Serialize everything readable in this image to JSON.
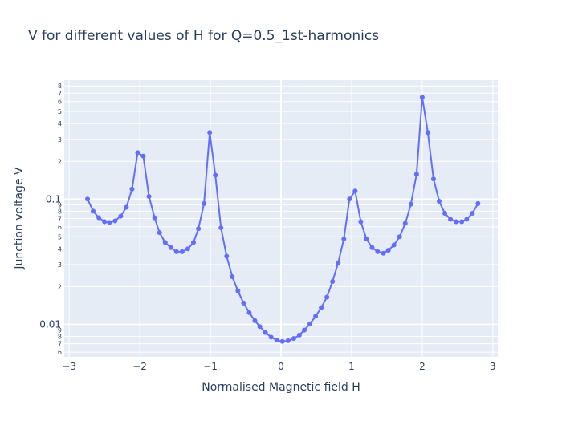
{
  "chart_data": {
    "type": "line",
    "title": "V for different values of H for Q=0.5_1st-harmonics",
    "xlabel": "Normalised Magnetic field H",
    "ylabel": "Junction voltage V",
    "xlim": [
      -3.07,
      3.07
    ],
    "ylim": [
      0.0055,
      0.89
    ],
    "y_scale": "log",
    "grid": true,
    "legend": "none",
    "series_color": "#636efa",
    "plot_bg": "#e5ecf6",
    "x_ticks": [
      {
        "value": -3,
        "label": "−3"
      },
      {
        "value": -2,
        "label": "−2"
      },
      {
        "value": -1,
        "label": "−1"
      },
      {
        "value": 0,
        "label": "0"
      },
      {
        "value": 1,
        "label": "1"
      },
      {
        "value": 2,
        "label": "2"
      },
      {
        "value": 3,
        "label": "3"
      }
    ],
    "y_major_ticks": [
      {
        "value": 0.01,
        "label": "0.01"
      },
      {
        "value": 0.1,
        "label": "0.1"
      }
    ],
    "y_minor_ticks": [
      {
        "value": 0.006,
        "label": "6"
      },
      {
        "value": 0.007,
        "label": "7"
      },
      {
        "value": 0.008,
        "label": "8"
      },
      {
        "value": 0.009,
        "label": "9"
      },
      {
        "value": 0.02,
        "label": "2"
      },
      {
        "value": 0.03,
        "label": "3"
      },
      {
        "value": 0.04,
        "label": "4"
      },
      {
        "value": 0.05,
        "label": "5"
      },
      {
        "value": 0.06,
        "label": "6"
      },
      {
        "value": 0.07,
        "label": "7"
      },
      {
        "value": 0.08,
        "label": "8"
      },
      {
        "value": 0.09,
        "label": "9"
      },
      {
        "value": 0.2,
        "label": "2"
      },
      {
        "value": 0.3,
        "label": "3"
      },
      {
        "value": 0.4,
        "label": "4"
      },
      {
        "value": 0.5,
        "label": "5"
      },
      {
        "value": 0.6,
        "label": "6"
      },
      {
        "value": 0.7,
        "label": "7"
      },
      {
        "value": 0.8,
        "label": "8"
      }
    ],
    "x": [
      -2.74,
      -2.66,
      -2.58,
      -2.5,
      -2.43,
      -2.35,
      -2.27,
      -2.19,
      -2.11,
      -2.03,
      -1.95,
      -1.87,
      -1.79,
      -1.72,
      -1.64,
      -1.56,
      -1.48,
      -1.4,
      -1.32,
      -1.24,
      -1.17,
      -1.09,
      -1.01,
      -0.93,
      -0.85,
      -0.77,
      -0.69,
      -0.61,
      -0.53,
      -0.45,
      -0.37,
      -0.3,
      -0.22,
      -0.14,
      -0.06,
      0.02,
      0.1,
      0.18,
      0.26,
      0.33,
      0.41,
      0.49,
      0.57,
      0.65,
      0.73,
      0.81,
      0.89,
      0.97,
      1.05,
      1.13,
      1.21,
      1.29,
      1.37,
      1.45,
      1.52,
      1.6,
      1.68,
      1.76,
      1.84,
      1.92,
      2.0,
      2.08,
      2.16,
      2.24,
      2.32,
      2.4,
      2.48,
      2.56,
      2.63,
      2.71,
      2.79
    ],
    "values": [
      0.1,
      0.08,
      0.071,
      0.066,
      0.065,
      0.067,
      0.073,
      0.086,
      0.12,
      0.235,
      0.22,
      0.105,
      0.071,
      0.054,
      0.045,
      0.041,
      0.038,
      0.038,
      0.04,
      0.045,
      0.058,
      0.092,
      0.34,
      0.155,
      0.059,
      0.035,
      0.024,
      0.0185,
      0.0148,
      0.0124,
      0.0107,
      0.0096,
      0.0086,
      0.0079,
      0.0075,
      0.0073,
      0.0074,
      0.0077,
      0.0082,
      0.009,
      0.0101,
      0.0116,
      0.0136,
      0.0165,
      0.022,
      0.031,
      0.048,
      0.1,
      0.116,
      0.066,
      0.048,
      0.041,
      0.038,
      0.037,
      0.039,
      0.043,
      0.05,
      0.064,
      0.091,
      0.158,
      0.65,
      0.34,
      0.145,
      0.096,
      0.077,
      0.069,
      0.066,
      0.066,
      0.069,
      0.077,
      0.092
    ]
  }
}
